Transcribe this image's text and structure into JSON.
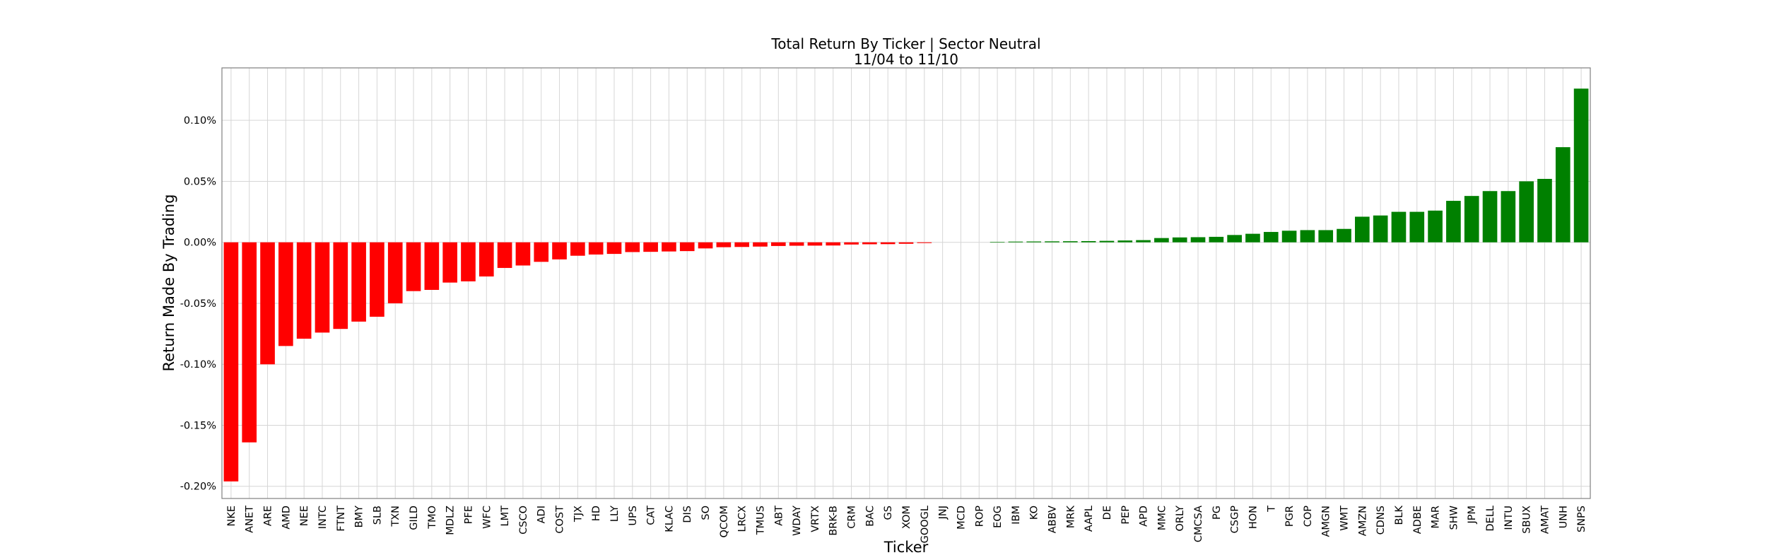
{
  "chart_data": {
    "type": "bar",
    "title": "Total Return By Ticker | Sector Neutral",
    "subtitle": "11/04 to 11/10",
    "xlabel": "Ticker",
    "ylabel": "Return Made By Trading",
    "ylim": [
      -0.21,
      0.143
    ],
    "yticks": [
      -0.2,
      -0.15,
      -0.1,
      -0.05,
      0.0,
      0.05,
      0.1
    ],
    "ytick_labels": [
      "-0.20%",
      "-0.15%",
      "-0.10%",
      "-0.05%",
      "0.00%",
      "0.05%",
      "0.10%"
    ],
    "grid": true,
    "colors": {
      "negative": "#ff0000",
      "positive": "#008000"
    },
    "categories": [
      "NKE",
      "ANET",
      "ARE",
      "AMD",
      "NEE",
      "INTC",
      "FTNT",
      "BMY",
      "SLB",
      "TXN",
      "GILD",
      "TMO",
      "MDLZ",
      "PFE",
      "WFC",
      "LMT",
      "CSCO",
      "ADI",
      "COST",
      "TJX",
      "HD",
      "LLY",
      "UPS",
      "CAT",
      "KLAC",
      "DIS",
      "SO",
      "QCOM",
      "LRCX",
      "TMUS",
      "ABT",
      "WDAY",
      "VRTX",
      "BRK-B",
      "CRM",
      "BAC",
      "GS",
      "XOM",
      "GOOGL",
      "JNJ",
      "MCD",
      "ROP",
      "EOG",
      "IBM",
      "KO",
      "ABBV",
      "MRK",
      "AAPL",
      "DE",
      "PEP",
      "APD",
      "MMC",
      "ORLY",
      "CMCSA",
      "PG",
      "CSGP",
      "HON",
      "T",
      "PGR",
      "COP",
      "AMGN",
      "WMT",
      "AMZN",
      "CDNS",
      "BLK",
      "ADBE",
      "MAR",
      "SHW",
      "JPM",
      "DELL",
      "INTU",
      "SBUX",
      "AMAT",
      "UNH",
      "SNPS"
    ],
    "values": [
      -0.196,
      -0.164,
      -0.1,
      -0.085,
      -0.079,
      -0.074,
      -0.071,
      -0.065,
      -0.061,
      -0.05,
      -0.04,
      -0.039,
      -0.033,
      -0.032,
      -0.028,
      -0.021,
      -0.019,
      -0.016,
      -0.014,
      -0.011,
      -0.01,
      -0.0095,
      -0.008,
      -0.0078,
      -0.0075,
      -0.0072,
      -0.005,
      -0.004,
      -0.0038,
      -0.0035,
      -0.003,
      -0.0028,
      -0.0027,
      -0.0026,
      -0.0018,
      -0.0016,
      -0.0015,
      -0.0012,
      -0.0006,
      0.0,
      0.0,
      0.0,
      0.0004,
      0.0006,
      0.0007,
      0.0008,
      0.0009,
      0.001,
      0.0012,
      0.0015,
      0.0018,
      0.0035,
      0.004,
      0.0042,
      0.0045,
      0.006,
      0.007,
      0.0085,
      0.0095,
      0.01,
      0.01,
      0.011,
      0.021,
      0.022,
      0.025,
      0.025,
      0.026,
      0.034,
      0.038,
      0.042,
      0.042,
      0.05,
      0.052,
      0.078,
      0.126
    ]
  }
}
